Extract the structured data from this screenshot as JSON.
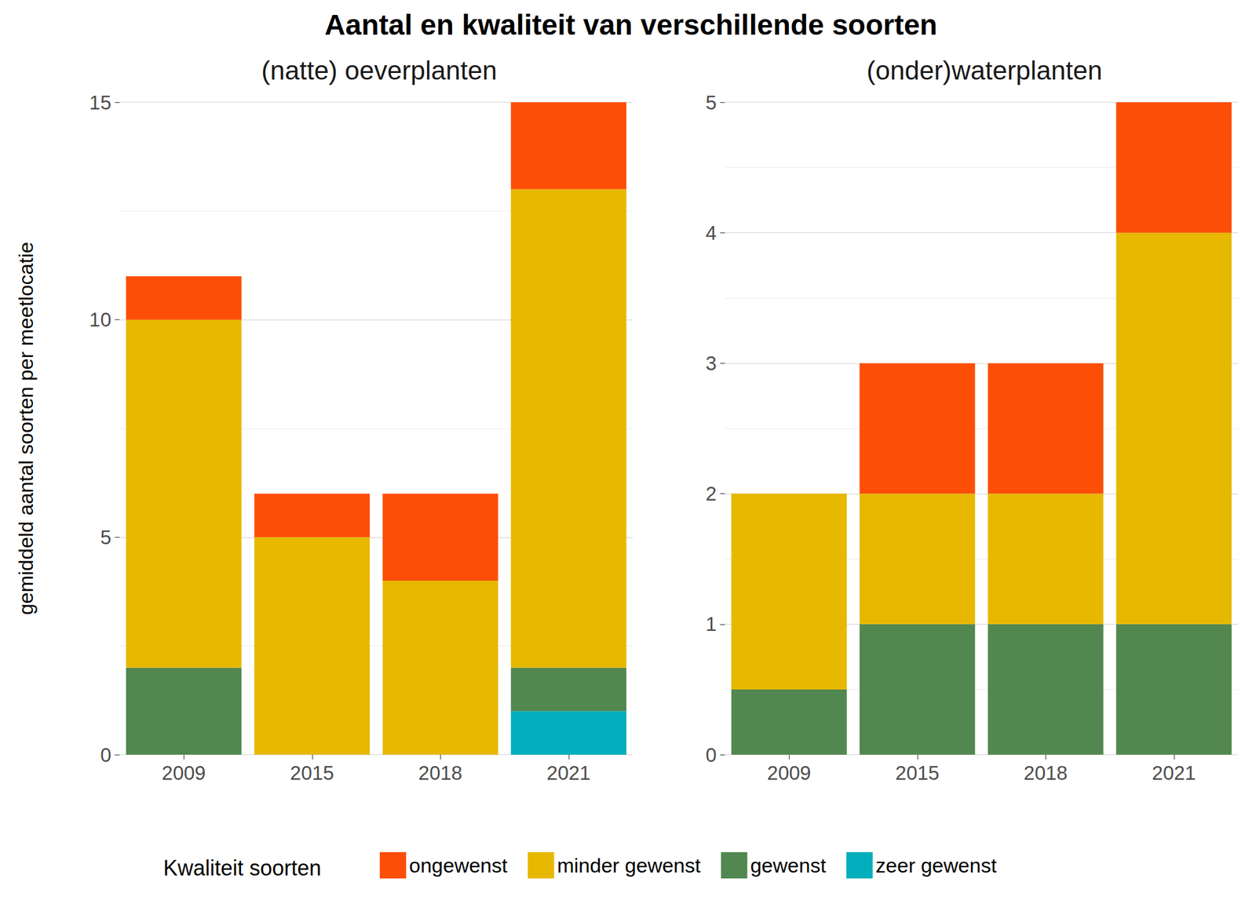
{
  "chart_data": {
    "type": "bar",
    "title": "Aantal en kwaliteit van verschillende soorten",
    "y_label": "gemiddeld aantal soorten per meetlocatie",
    "legend_title": "Kwaliteit soorten",
    "legend": "bottom",
    "stacked": true,
    "grid": true,
    "panels": [
      {
        "subtitle": "(natte) oeverplanten",
        "categories": [
          "2009",
          "2015",
          "2018",
          "2021"
        ],
        "ylim": [
          0,
          15
        ],
        "yticks": [
          0,
          5,
          10,
          15
        ],
        "series": [
          {
            "name": "zeer gewenst",
            "color": "#00AFBB",
            "values": [
              0,
              0,
              0,
              1
            ]
          },
          {
            "name": "gewenst",
            "color": "#52874F",
            "values": [
              2,
              0,
              0,
              1
            ]
          },
          {
            "name": "minder gewenst",
            "color": "#E7B800",
            "values": [
              8,
              5,
              4,
              11
            ]
          },
          {
            "name": "ongewenst",
            "color": "#FC4E07",
            "values": [
              1,
              1,
              2,
              2
            ]
          }
        ]
      },
      {
        "subtitle": "(onder)waterplanten",
        "categories": [
          "2009",
          "2015",
          "2018",
          "2021"
        ],
        "ylim": [
          0,
          5
        ],
        "yticks": [
          0,
          1,
          2,
          3,
          4,
          5
        ],
        "series": [
          {
            "name": "zeer gewenst",
            "color": "#00AFBB",
            "values": [
              0,
              0,
              0,
              0
            ]
          },
          {
            "name": "gewenst",
            "color": "#52874F",
            "values": [
              0.5,
              1,
              1,
              1
            ]
          },
          {
            "name": "minder gewenst",
            "color": "#E7B800",
            "values": [
              1.5,
              1,
              1,
              3
            ]
          },
          {
            "name": "ongewenst",
            "color": "#FC4E07",
            "values": [
              0,
              1,
              1,
              1
            ]
          }
        ]
      }
    ]
  }
}
